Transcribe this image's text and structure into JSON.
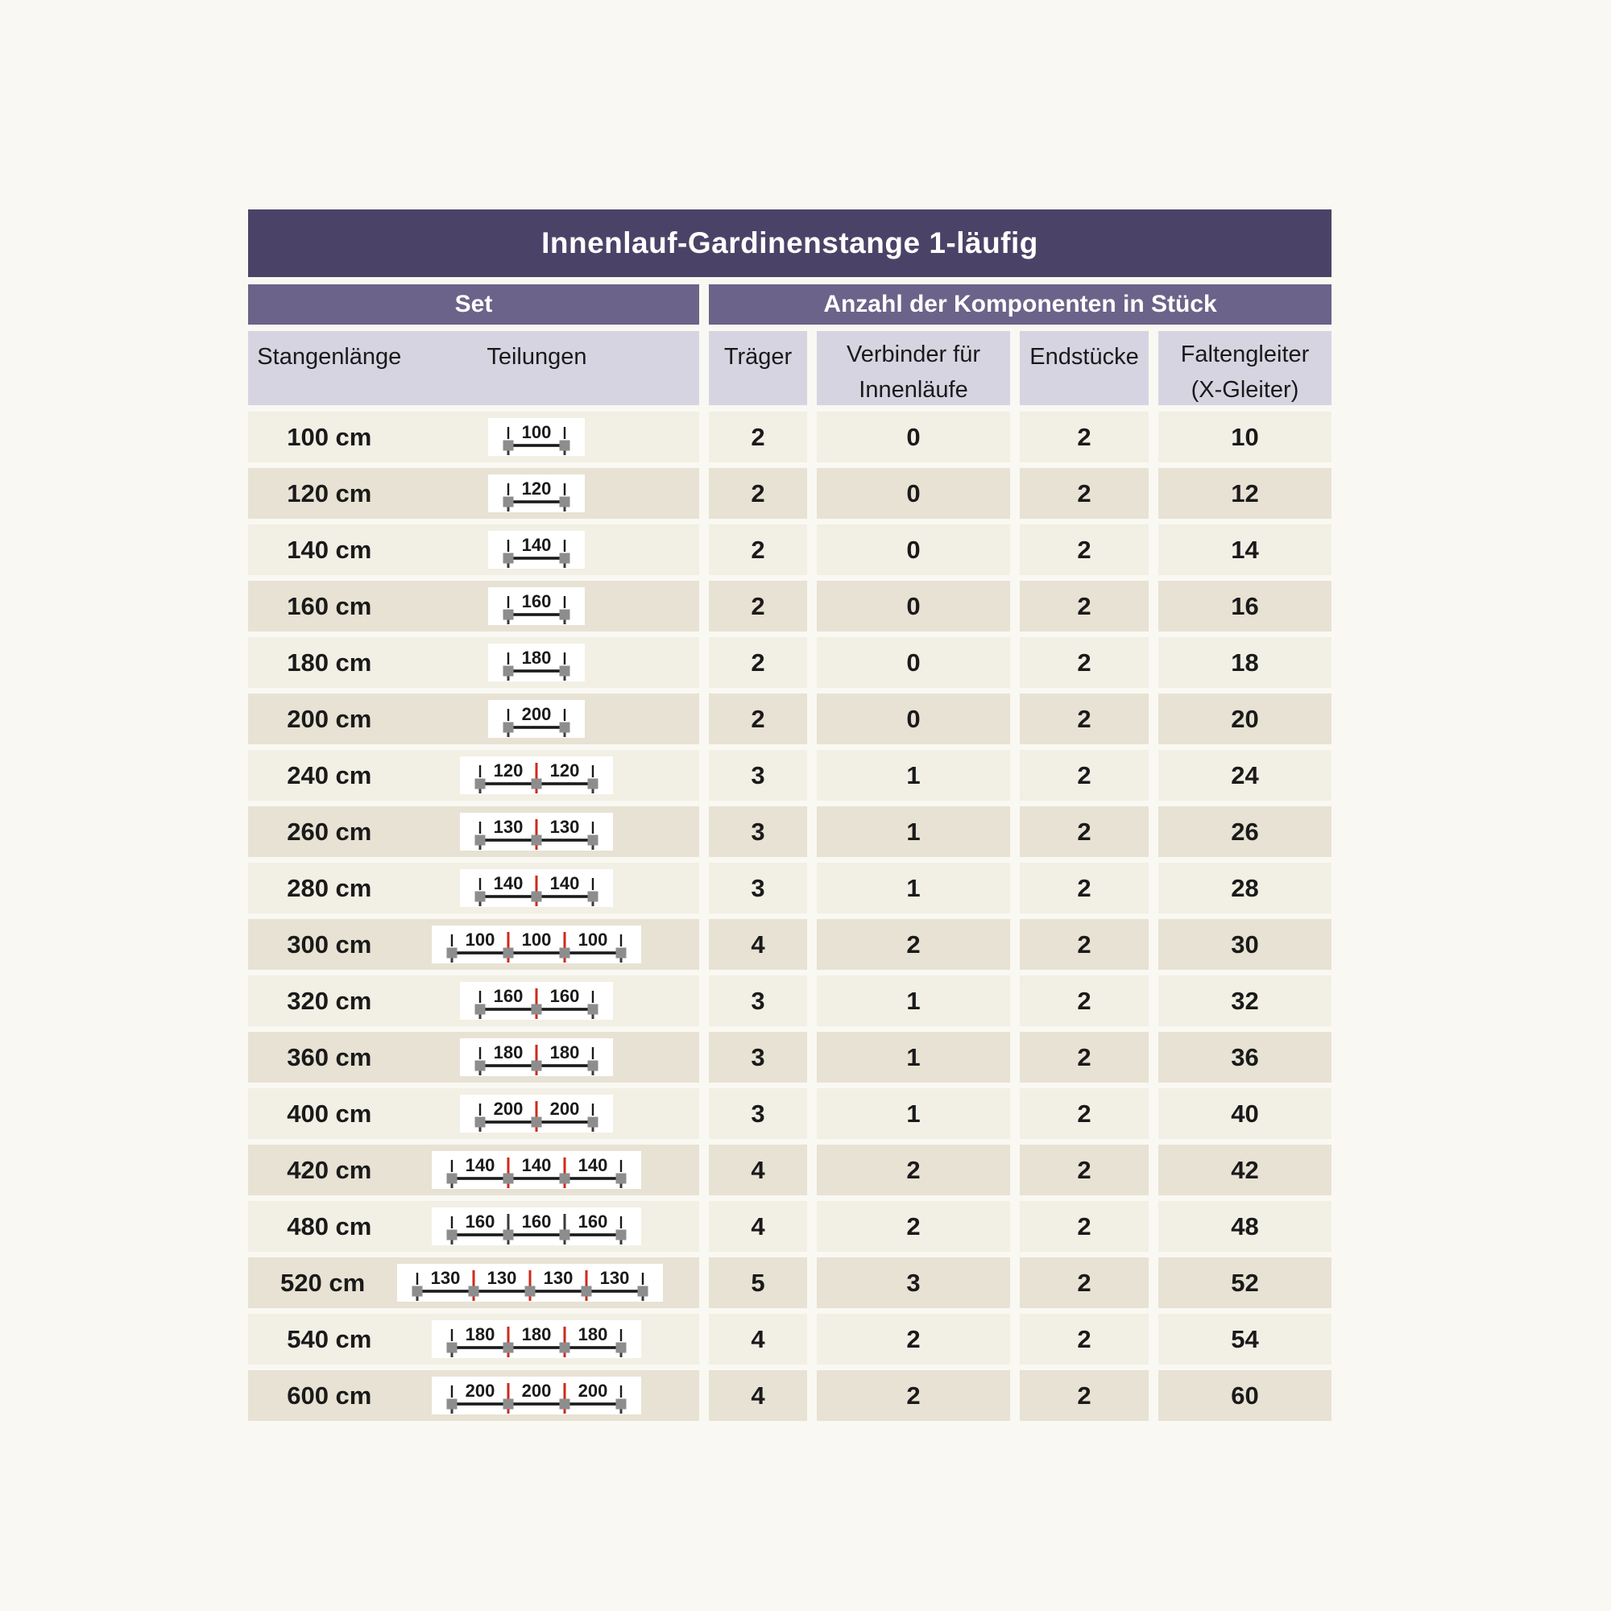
{
  "table": {
    "title": "Innenlauf-Gardinenstange 1-läufig",
    "sections": {
      "set": "Set",
      "components": "Anzahl der Komponenten in Stück"
    },
    "columns": {
      "stangenlaenge": "Stangenlänge",
      "teilungen": "Teilungen",
      "traeger": "Träger",
      "verbinder_line1": "Verbinder für",
      "verbinder_line2": "Innenläufe",
      "endstuecke": "Endstücke",
      "faltengleiter_line1": "Faltengleiter",
      "faltengleiter_line2": "(X-Gleiter)"
    },
    "colors": {
      "page_bg": "#f9f8f2",
      "title_bg": "#4b4367",
      "section_bg": "#6b6389",
      "header_bg": "#d7d4e2",
      "row_light": "#f2efe5",
      "row_dark": "#e8e2d4",
      "connector_red": "#cf2a1b",
      "bracket_gray": "#8d8d8d"
    },
    "rows": [
      {
        "length": "100 cm",
        "segments": [
          100
        ],
        "traeger": "2",
        "verbinder": "0",
        "endstuecke": "2",
        "faltengleiter": "10"
      },
      {
        "length": "120 cm",
        "segments": [
          120
        ],
        "traeger": "2",
        "verbinder": "0",
        "endstuecke": "2",
        "faltengleiter": "12"
      },
      {
        "length": "140 cm",
        "segments": [
          140
        ],
        "traeger": "2",
        "verbinder": "0",
        "endstuecke": "2",
        "faltengleiter": "14"
      },
      {
        "length": "160 cm",
        "segments": [
          160
        ],
        "traeger": "2",
        "verbinder": "0",
        "endstuecke": "2",
        "faltengleiter": "16"
      },
      {
        "length": "180 cm",
        "segments": [
          180
        ],
        "traeger": "2",
        "verbinder": "0",
        "endstuecke": "2",
        "faltengleiter": "18"
      },
      {
        "length": "200 cm",
        "segments": [
          200
        ],
        "traeger": "2",
        "verbinder": "0",
        "endstuecke": "2",
        "faltengleiter": "20"
      },
      {
        "length": "240 cm",
        "segments": [
          120,
          120
        ],
        "traeger": "3",
        "verbinder": "1",
        "endstuecke": "2",
        "faltengleiter": "24"
      },
      {
        "length": "260 cm",
        "segments": [
          130,
          130
        ],
        "traeger": "3",
        "verbinder": "1",
        "endstuecke": "2",
        "faltengleiter": "26"
      },
      {
        "length": "280 cm",
        "segments": [
          140,
          140
        ],
        "traeger": "3",
        "verbinder": "1",
        "endstuecke": "2",
        "faltengleiter": "28"
      },
      {
        "length": "300 cm",
        "segments": [
          100,
          100,
          100
        ],
        "traeger": "4",
        "verbinder": "2",
        "endstuecke": "2",
        "faltengleiter": "30"
      },
      {
        "length": "320 cm",
        "segments": [
          160,
          160
        ],
        "traeger": "3",
        "verbinder": "1",
        "endstuecke": "2",
        "faltengleiter": "32"
      },
      {
        "length": "360 cm",
        "segments": [
          180,
          180
        ],
        "traeger": "3",
        "verbinder": "1",
        "endstuecke": "2",
        "faltengleiter": "36"
      },
      {
        "length": "400 cm",
        "segments": [
          200,
          200
        ],
        "traeger": "3",
        "verbinder": "1",
        "endstuecke": "2",
        "faltengleiter": "40"
      },
      {
        "length": "420 cm",
        "segments": [
          140,
          140,
          140
        ],
        "traeger": "4",
        "verbinder": "2",
        "endstuecke": "2",
        "faltengleiter": "42"
      },
      {
        "length": "480 cm",
        "segments": [
          160,
          160,
          160
        ],
        "red_connectors": false,
        "traeger": "4",
        "verbinder": "2",
        "endstuecke": "2",
        "faltengleiter": "48"
      },
      {
        "length": "520 cm",
        "segments": [
          130,
          130,
          130,
          130
        ],
        "traeger": "5",
        "verbinder": "3",
        "endstuecke": "2",
        "faltengleiter": "52"
      },
      {
        "length": "540 cm",
        "segments": [
          180,
          180,
          180
        ],
        "traeger": "4",
        "verbinder": "2",
        "endstuecke": "2",
        "faltengleiter": "54"
      },
      {
        "length": "600 cm",
        "segments": [
          200,
          200,
          200
        ],
        "traeger": "4",
        "verbinder": "2",
        "endstuecke": "2",
        "faltengleiter": "60"
      }
    ]
  }
}
